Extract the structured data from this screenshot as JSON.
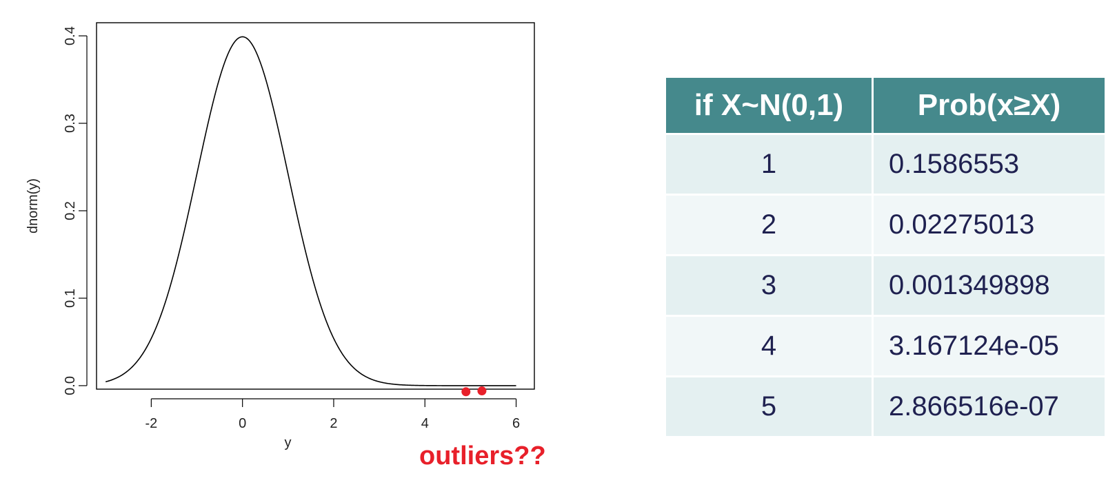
{
  "chart_data": {
    "type": "line",
    "xlabel": "y",
    "ylabel": "dnorm(y)",
    "xlim": [
      -3.2,
      6.4
    ],
    "ylim": [
      -0.004,
      0.415
    ],
    "x_ticks": [
      -2,
      0,
      2,
      4,
      6
    ],
    "y_ticks": [
      0.0,
      0.1,
      0.2,
      0.3,
      0.4
    ],
    "x_tick_labels": [
      "-2",
      "0",
      "2",
      "4",
      "6"
    ],
    "y_tick_labels": [
      "0.0",
      "0.1",
      "0.2",
      "0.3",
      "0.4"
    ],
    "curve": {
      "function": "dnorm",
      "x_range": [
        -3,
        6
      ],
      "color": "#000000"
    },
    "points": [
      {
        "x": 4.9,
        "y": -0.007
      },
      {
        "x": 5.25,
        "y": -0.006
      }
    ],
    "points_color": "#e8202a",
    "annotation": {
      "text": "outliers??",
      "color": "#e8202a"
    }
  },
  "table": {
    "header_color": "#45898c",
    "row_colors": [
      "#e4f0f1",
      "#f1f7f8"
    ],
    "columns": [
      "if X~N(0,1)",
      "Prob(x≥X)"
    ],
    "rows": [
      [
        "1",
        "0.1586553"
      ],
      [
        "2",
        "0.02275013"
      ],
      [
        "3",
        "0.001349898"
      ],
      [
        "4",
        "3.167124e-05"
      ],
      [
        "5",
        "2.866516e-07"
      ]
    ]
  }
}
